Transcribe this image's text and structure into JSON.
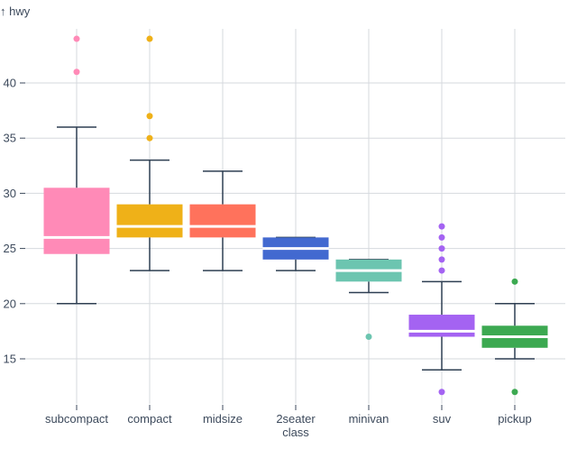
{
  "chart_data": {
    "type": "box",
    "ylabel": "↑ hwy",
    "xlabel": "class",
    "ylim": [
      11,
      46
    ],
    "yticks": [
      15,
      20,
      25,
      30,
      35,
      40
    ],
    "grid": true,
    "categories": [
      "subcompact",
      "compact",
      "midsize",
      "2seater",
      "minivan",
      "suv",
      "pickup"
    ],
    "boxes": [
      {
        "category": "subcompact",
        "color": "#ff8ab7",
        "whisker_low": 20,
        "q1": 24.5,
        "median": 26,
        "q3": 30.5,
        "whisker_high": 36,
        "outliers": [
          41,
          44
        ]
      },
      {
        "category": "compact",
        "color": "#efb118",
        "whisker_low": 23,
        "q1": 26,
        "median": 27,
        "q3": 29,
        "whisker_high": 33,
        "outliers": [
          35,
          37,
          44
        ]
      },
      {
        "category": "midsize",
        "color": "#ff725c",
        "whisker_low": 23,
        "q1": 26,
        "median": 27,
        "q3": 29,
        "whisker_high": 32,
        "outliers": []
      },
      {
        "category": "2seater",
        "color": "#4269d0",
        "whisker_low": 23,
        "q1": 24,
        "median": 25,
        "q3": 26,
        "whisker_high": 26,
        "outliers": []
      },
      {
        "category": "minivan",
        "color": "#6cc5b0",
        "whisker_low": 21,
        "q1": 22,
        "median": 23,
        "q3": 24,
        "whisker_high": 24,
        "outliers": [
          17
        ]
      },
      {
        "category": "suv",
        "color": "#a463f2",
        "whisker_low": 14,
        "q1": 17,
        "median": 17.5,
        "q3": 19,
        "whisker_high": 22,
        "outliers": [
          12,
          23,
          24,
          25,
          26,
          27
        ]
      },
      {
        "category": "pickup",
        "color": "#3ca951",
        "whisker_low": 15,
        "q1": 16,
        "median": 17,
        "q3": 18,
        "whisker_high": 20,
        "outliers": [
          12,
          22
        ]
      }
    ]
  }
}
